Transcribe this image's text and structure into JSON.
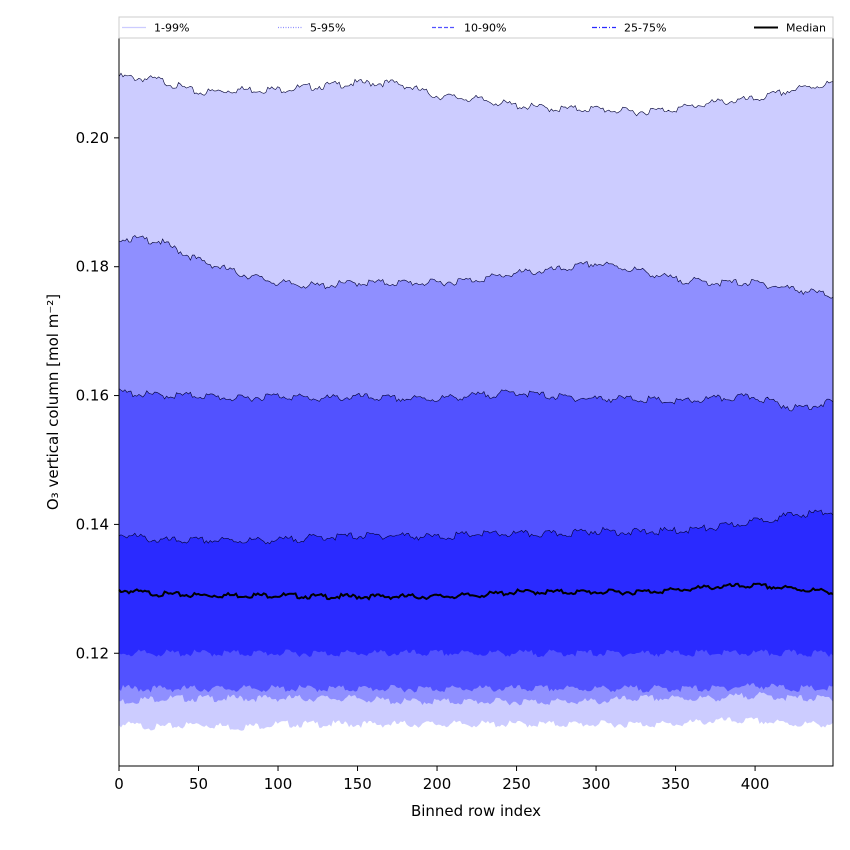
{
  "chart_data": {
    "type": "area",
    "title": "",
    "xlabel": "Binned row index",
    "ylabel": "O₃ vertical column [mol m⁻²]",
    "xlim": [
      0,
      449
    ],
    "ylim": [
      0.1025,
      0.2155
    ],
    "x_ticks": [
      0,
      50,
      100,
      150,
      200,
      250,
      300,
      350,
      400
    ],
    "y_ticks": [
      0.12,
      0.14,
      0.16,
      0.18,
      0.2
    ],
    "y_tick_labels": [
      "0.12",
      "0.14",
      "0.16",
      "0.18",
      "0.20"
    ],
    "grid": false,
    "legend_position": "top",
    "x": [
      0,
      25,
      50,
      75,
      100,
      125,
      150,
      175,
      200,
      225,
      250,
      275,
      300,
      325,
      350,
      375,
      400,
      425,
      449
    ],
    "series": [
      {
        "name": "1-99%",
        "kind": "band",
        "color": "#ccccff",
        "lower": [
          0.109,
          0.1085,
          0.109,
          0.1085,
          0.109,
          0.109,
          0.109,
          0.109,
          0.109,
          0.109,
          0.109,
          0.109,
          0.109,
          0.109,
          0.109,
          0.1095,
          0.1095,
          0.109,
          0.109
        ],
        "upper": [
          0.2095,
          0.209,
          0.207,
          0.2075,
          0.2075,
          0.208,
          0.2085,
          0.2085,
          0.2065,
          0.206,
          0.205,
          0.2045,
          0.2045,
          0.204,
          0.2045,
          0.2055,
          0.206,
          0.2075,
          0.2085
        ]
      },
      {
        "name": "5-95%",
        "kind": "band",
        "color": "#8f8fff",
        "lower": [
          0.1125,
          0.113,
          0.113,
          0.113,
          0.113,
          0.113,
          0.113,
          0.1125,
          0.1125,
          0.1125,
          0.1125,
          0.1125,
          0.1125,
          0.113,
          0.113,
          0.113,
          0.1135,
          0.113,
          0.113
        ],
        "upper": [
          0.1845,
          0.184,
          0.181,
          0.179,
          0.1775,
          0.177,
          0.1775,
          0.1775,
          0.1775,
          0.178,
          0.179,
          0.1795,
          0.1805,
          0.1795,
          0.178,
          0.1775,
          0.1775,
          0.1765,
          0.1755
        ]
      },
      {
        "name": "10-90%",
        "kind": "band",
        "color": "#5252ff",
        "lower": [
          0.1145,
          0.1145,
          0.1145,
          0.1145,
          0.1145,
          0.1145,
          0.1145,
          0.1145,
          0.1145,
          0.1145,
          0.1145,
          0.1145,
          0.1145,
          0.1145,
          0.1145,
          0.1145,
          0.115,
          0.1145,
          0.1145
        ],
        "upper": [
          0.1605,
          0.16,
          0.16,
          0.1595,
          0.16,
          0.1595,
          0.1598,
          0.1595,
          0.1595,
          0.16,
          0.1605,
          0.1598,
          0.1595,
          0.1595,
          0.159,
          0.1595,
          0.1598,
          0.158,
          0.159
        ]
      },
      {
        "name": "25-75%",
        "kind": "band",
        "color": "#2a2aff",
        "lower": [
          0.12,
          0.12,
          0.12,
          0.12,
          0.12,
          0.12,
          0.12,
          0.12,
          0.12,
          0.12,
          0.12,
          0.12,
          0.12,
          0.12,
          0.12,
          0.12,
          0.12,
          0.12,
          0.12
        ],
        "upper": [
          0.1385,
          0.1375,
          0.1375,
          0.1375,
          0.1375,
          0.138,
          0.1382,
          0.1383,
          0.138,
          0.1385,
          0.1385,
          0.1385,
          0.139,
          0.1388,
          0.139,
          0.1395,
          0.1405,
          0.1415,
          0.142
        ]
      },
      {
        "name": "Median",
        "kind": "line",
        "color": "#000000",
        "values": [
          0.1298,
          0.1292,
          0.129,
          0.129,
          0.129,
          0.1288,
          0.1288,
          0.1288,
          0.1288,
          0.129,
          0.1295,
          0.1295,
          0.1295,
          0.1295,
          0.1298,
          0.1303,
          0.1305,
          0.13,
          0.1295
        ]
      }
    ],
    "legend": [
      {
        "label": "1-99%",
        "style": "solid",
        "color": "#ccccff"
      },
      {
        "label": "5-95%",
        "style": "dotted",
        "color": "#8f8fff"
      },
      {
        "label": "10-90%",
        "style": "dashed",
        "color": "#5252ff"
      },
      {
        "label": "25-75%",
        "style": "dashdot",
        "color": "#2a2aff"
      },
      {
        "label": "Median",
        "style": "solid",
        "color": "#000000"
      }
    ]
  }
}
